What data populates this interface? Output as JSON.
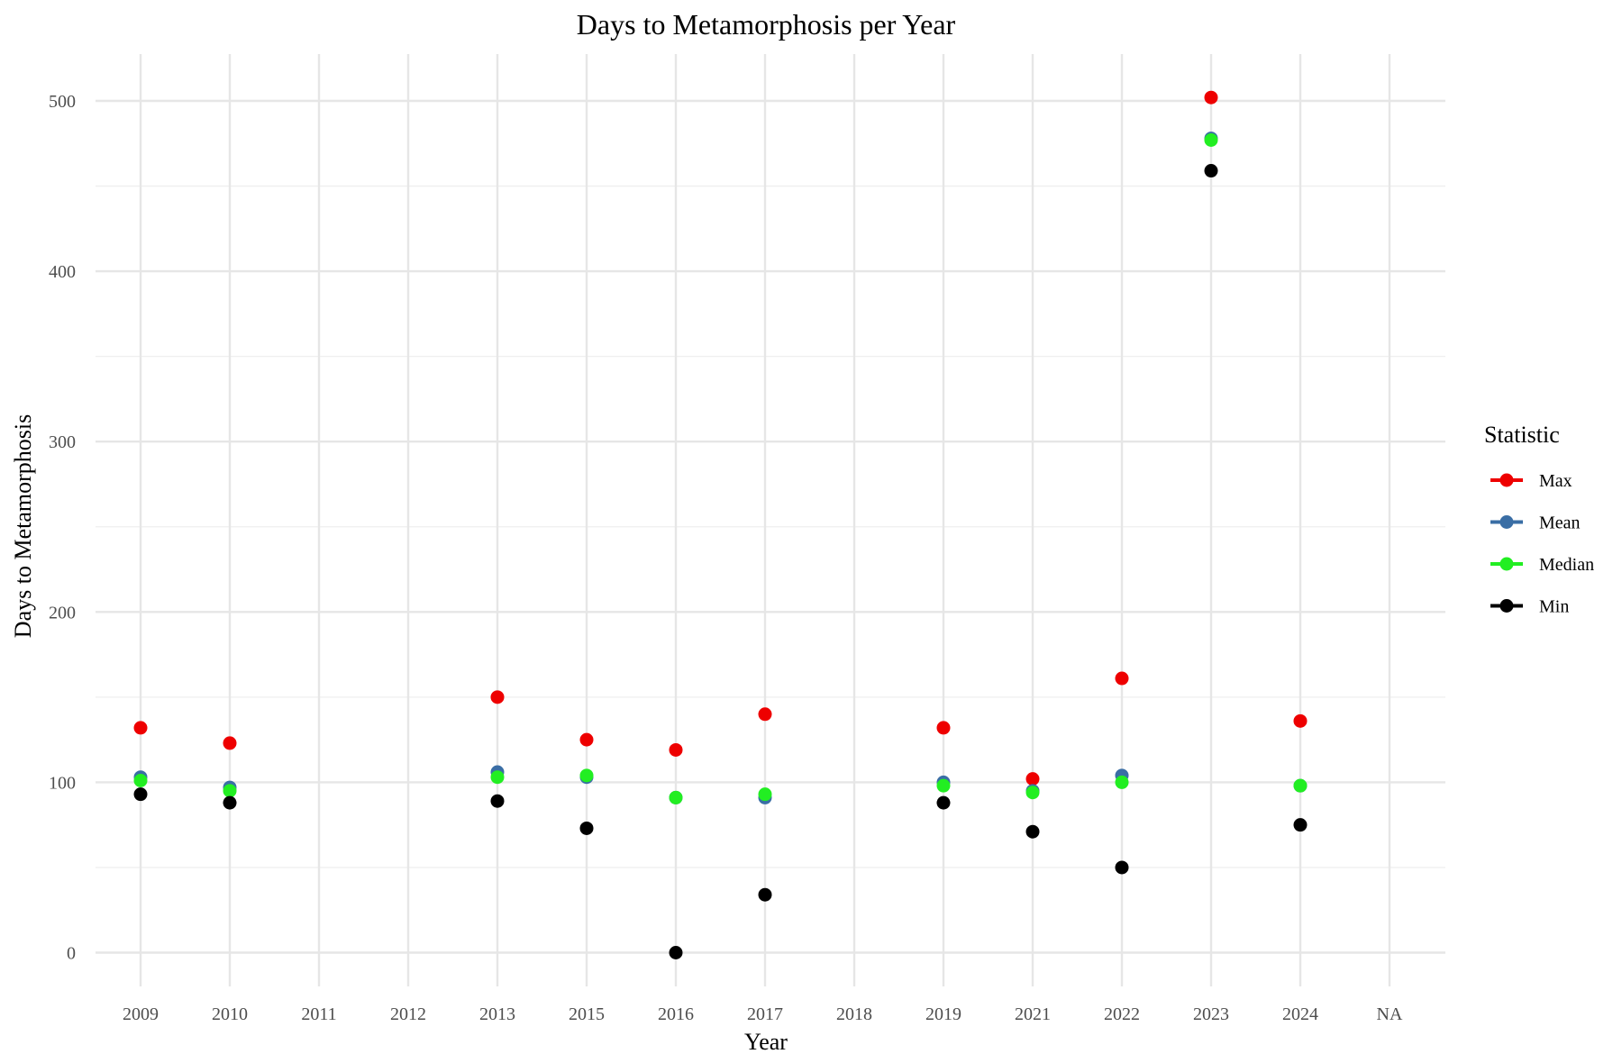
{
  "chart_data": {
    "type": "scatter",
    "title": "Days to Metamorphosis per Year",
    "xlabel": "Year",
    "ylabel": "Days to Metamorphosis",
    "categories": [
      "2009",
      "2010",
      "2011",
      "2012",
      "2013",
      "2015",
      "2016",
      "2017",
      "2018",
      "2019",
      "2021",
      "2022",
      "2023",
      "2024",
      "NA"
    ],
    "ylim": [
      -25,
      525
    ],
    "yticks": [
      0,
      100,
      200,
      300,
      400,
      500
    ],
    "grid": true,
    "legend": {
      "title": "Statistic",
      "position": "right"
    },
    "series": [
      {
        "name": "Max",
        "color": "#ee0000",
        "values": [
          132,
          123,
          null,
          null,
          150,
          125,
          119,
          140,
          null,
          132,
          102,
          161,
          502,
          136,
          null
        ]
      },
      {
        "name": "Mean",
        "color": "#3a6ea5",
        "values": [
          103,
          97,
          null,
          null,
          106,
          103,
          91,
          91,
          null,
          100,
          95,
          104,
          478,
          98,
          null
        ]
      },
      {
        "name": "Median",
        "color": "#22ee22",
        "values": [
          101,
          95,
          null,
          null,
          103,
          104,
          91,
          93,
          null,
          98,
          94,
          100,
          477,
          98,
          null
        ]
      },
      {
        "name": "Min",
        "color": "#000000",
        "values": [
          93,
          88,
          null,
          null,
          89,
          73,
          0,
          34,
          null,
          88,
          71,
          50,
          459,
          75,
          null
        ]
      }
    ]
  }
}
